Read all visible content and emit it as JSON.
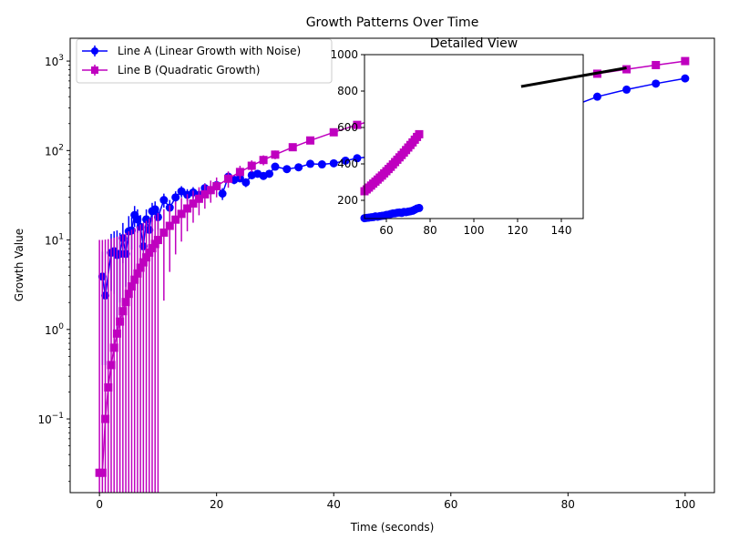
{
  "chart_data": [
    {
      "type": "line",
      "title": "Growth Patterns Over Time",
      "xlabel": "Time (seconds)",
      "ylabel": "Growth Value",
      "xlim": [
        -5,
        105
      ],
      "ylim": [
        0.015,
        1800
      ],
      "yscale": "log",
      "xticks": [
        "0",
        "20",
        "40",
        "60",
        "80",
        "100"
      ],
      "yticks": [
        {
          "value": 0.1,
          "base": "10",
          "exp": "−1"
        },
        {
          "value": 1,
          "base": "10",
          "exp": "0"
        },
        {
          "value": 10,
          "base": "10",
          "exp": "1"
        },
        {
          "value": 100,
          "base": "10",
          "exp": "2"
        },
        {
          "value": 1000,
          "base": "10",
          "exp": "3"
        }
      ],
      "grid": false,
      "legend_position": "top-left",
      "series": [
        {
          "name": "Line A (Linear Growth with Noise)",
          "color": "#0000ff",
          "marker": "circle",
          "x": [
            0.5,
            1,
            2,
            2.5,
            3,
            3.5,
            4,
            4.5,
            5,
            5.5,
            6,
            6.5,
            7,
            7.5,
            8,
            8.5,
            9,
            9.5,
            10,
            11,
            12,
            13,
            14,
            15,
            16,
            17,
            18,
            19,
            20,
            21,
            22,
            23,
            24,
            25,
            26,
            27,
            28,
            29,
            30,
            32,
            34,
            36,
            38,
            40,
            42,
            44,
            46,
            48,
            50,
            55,
            60,
            65,
            70,
            75,
            80,
            85,
            90,
            95,
            100
          ],
          "y": [
            3.9,
            2.4,
            7.2,
            7.5,
            6.8,
            7.0,
            10.5,
            7.0,
            12.5,
            12.8,
            19,
            17,
            14,
            8.5,
            17,
            13,
            21,
            22,
            18,
            28,
            23,
            30,
            35,
            32,
            34,
            32,
            38,
            36,
            41,
            33,
            51,
            47,
            49,
            44,
            53,
            55,
            52,
            55,
            66,
            62,
            65,
            71,
            70,
            72,
            77,
            82,
            85,
            88,
            91,
            95,
            100,
            118,
            150,
            230,
            300,
            400,
            480,
            560,
            640
          ],
          "yerr": [
            3.5,
            2.0,
            4.5,
            5.0,
            6.0,
            5.0,
            5.0,
            4.0,
            6.0,
            5.0,
            5.0,
            5.0,
            5.0,
            4.0,
            5.0,
            5.0,
            5.0,
            5.0,
            5.0,
            5.0,
            5.0,
            5.0,
            5.0,
            5.0,
            5.0,
            5.0,
            5.0,
            5.0,
            5.0,
            5.0,
            5.0,
            5.0,
            5.0,
            5.0,
            5.0,
            5.0,
            5.0,
            5.0,
            5.0,
            5.0,
            5.0,
            5.0,
            5.0,
            5.0,
            5.0,
            5.0,
            5.0,
            5.0,
            5.0,
            5.0,
            5.0,
            5.0,
            5.0,
            5.0,
            5.0,
            5.0,
            5.0,
            5.0,
            5.0
          ]
        },
        {
          "name": "Line B (Quadratic Growth)",
          "color": "#bf00bf",
          "marker": "square",
          "x": [
            0,
            0.5,
            1,
            1.5,
            2,
            2.5,
            3,
            3.5,
            4,
            4.5,
            5,
            5.5,
            6,
            6.5,
            7,
            7.5,
            8,
            8.5,
            9,
            9.5,
            10,
            11,
            12,
            13,
            14,
            15,
            16,
            17,
            18,
            19,
            20,
            22,
            24,
            26,
            28,
            30,
            33,
            36,
            40,
            44,
            48,
            52,
            56,
            60,
            65,
            70,
            75,
            80,
            85,
            90,
            95,
            100
          ],
          "y": [
            0.025,
            0.025,
            0.1,
            0.225,
            0.4,
            0.625,
            0.9,
            1.225,
            1.6,
            2.025,
            2.5,
            3.025,
            3.6,
            4.225,
            4.9,
            5.625,
            6.4,
            7.225,
            8.1,
            9.025,
            10,
            12.1,
            14.4,
            16.9,
            19.6,
            22.5,
            25.6,
            28.9,
            32.4,
            36.1,
            40,
            48.4,
            57.6,
            67.6,
            78.4,
            90,
            108.9,
            129.6,
            160,
            193.6,
            230.4,
            270.4,
            313.6,
            360,
            422.5,
            490,
            562.5,
            640,
            722.5,
            810,
            902.5,
            1000
          ],
          "yerr": [
            10,
            10,
            10,
            10,
            10,
            10,
            10,
            10,
            10,
            10,
            10,
            10,
            10,
            10,
            10,
            10,
            10,
            10,
            10,
            10,
            10,
            10,
            10,
            10,
            10,
            10,
            10,
            10,
            10,
            10,
            10,
            10,
            10,
            10,
            10,
            10,
            10,
            10,
            10,
            10,
            10,
            10,
            10,
            10,
            10,
            10,
            10,
            10,
            10,
            10,
            10,
            10
          ]
        }
      ],
      "annotations": [
        {
          "type": "arrow-line",
          "color": "#000000",
          "x": [
            72,
            90
          ],
          "y": [
            520,
            840
          ]
        }
      ]
    },
    {
      "type": "line",
      "title": "Detailed View",
      "xlabel": "",
      "ylabel": "",
      "xlim": [
        50,
        150
      ],
      "ylim": [
        100,
        1000
      ],
      "yscale": "linear",
      "xticks": [
        "60",
        "80",
        "100",
        "120",
        "140"
      ],
      "yticks": [
        "200",
        "400",
        "600",
        "800",
        "1000"
      ],
      "series": [
        {
          "color": "#0000ff",
          "marker": "circle",
          "x": [
            50,
            51,
            52,
            53,
            54,
            55,
            56,
            57,
            58,
            59,
            60,
            61,
            62,
            63,
            64,
            65,
            66,
            67,
            68,
            69,
            70,
            71,
            72,
            73,
            74,
            75
          ],
          "y": [
            102,
            104,
            105,
            107,
            108,
            112,
            110,
            113,
            115,
            116,
            120,
            121,
            125,
            128,
            129,
            132,
            133,
            131,
            136,
            135,
            138,
            140,
            143,
            149,
            155,
            158
          ]
        },
        {
          "color": "#bf00bf",
          "marker": "square",
          "x": [
            50,
            51,
            52,
            53,
            54,
            55,
            56,
            57,
            58,
            59,
            60,
            61,
            62,
            63,
            64,
            65,
            66,
            67,
            68,
            69,
            70,
            71,
            72,
            73,
            74,
            75
          ],
          "y": [
            250,
            260,
            270,
            281,
            292,
            303,
            314,
            325,
            336,
            348,
            360,
            372,
            384,
            397,
            410,
            423,
            436,
            449,
            462,
            476,
            490,
            504,
            518,
            533,
            548,
            563
          ]
        }
      ]
    }
  ]
}
